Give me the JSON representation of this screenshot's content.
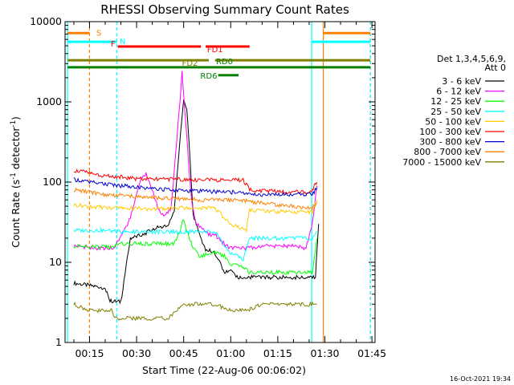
{
  "chart_data": {
    "type": "line",
    "title": "RHESSI Observing Summary Count Rates",
    "xlabel": "Start Time (22-Aug-06 00:06:02)",
    "ylabel_main": "Count Rate (s",
    "ylabel_sup": "-1",
    "ylabel_mid": " detector",
    "ylabel_sup2": "-1",
    "ylabel_end": ")",
    "x_range_min": [
      7.2,
      106
    ],
    "y_log": true,
    "ylim": [
      1,
      10000
    ],
    "y_ticks": [
      {
        "value": 1,
        "label": "1"
      },
      {
        "value": 10,
        "label": "10"
      },
      {
        "value": 100,
        "label": "100"
      },
      {
        "value": 1000,
        "label": "1000"
      },
      {
        "value": 10000,
        "label": "10000"
      }
    ],
    "x_ticks": [
      {
        "value": 15,
        "label": "00:15"
      },
      {
        "value": 30,
        "label": "00:30"
      },
      {
        "value": 45,
        "label": "00:45"
      },
      {
        "value": 60,
        "label": "01:00"
      },
      {
        "value": 75,
        "label": "01:15"
      },
      {
        "value": 90,
        "label": "01:30"
      },
      {
        "value": 105,
        "label": "01:45"
      }
    ],
    "legend_header": [
      "Det 1,3,4,5,6,9,",
      "Att 0"
    ],
    "legend_placement": "right",
    "timestamp": "16-Oct-2021 19:34",
    "series": [
      {
        "name": "3 - 6 keV",
        "color": "#000000",
        "x": [
          10,
          20,
          21.5,
          25,
          28,
          32,
          36,
          40,
          42,
          44,
          45,
          46,
          47,
          48,
          50,
          52,
          54,
          56,
          58,
          60,
          62,
          65,
          68,
          72,
          76,
          80,
          84,
          87,
          88
        ],
        "y": [
          5.5,
          4.8,
          3.3,
          3.2,
          20,
          22,
          27,
          28,
          45,
          400,
          1050,
          800,
          200,
          40,
          22,
          14,
          14,
          11,
          7.5,
          8,
          6.5,
          6.5,
          6.5,
          6.5,
          6.5,
          6.5,
          6.5,
          6.5,
          30
        ]
      },
      {
        "name": "6 - 12 keV",
        "color": "#ff00ff",
        "x": [
          10,
          14,
          17,
          20,
          23,
          25,
          28,
          30,
          31.5,
          33,
          35,
          37,
          39,
          41,
          43,
          44.5,
          46,
          47.5,
          49,
          51,
          53,
          55,
          57,
          60,
          62,
          65,
          70,
          75,
          80,
          84,
          86,
          87.5
        ],
        "y": [
          16,
          15.5,
          15,
          15,
          15,
          22,
          35,
          70,
          110,
          130,
          80,
          45,
          37,
          48,
          400,
          2300,
          350,
          60,
          30,
          27,
          22,
          22,
          18,
          15,
          15,
          15,
          16,
          16,
          16,
          15,
          30,
          90
        ]
      },
      {
        "name": "12 - 25 keV",
        "color": "#00ff00",
        "x": [
          10,
          14,
          18,
          22,
          25,
          30,
          35,
          38,
          40,
          42,
          44,
          45,
          46,
          48,
          50,
          55,
          58,
          60,
          62,
          64,
          66,
          70,
          75,
          80,
          84,
          86,
          87.5
        ],
        "y": [
          16,
          15.5,
          15.5,
          15.5,
          17,
          17,
          17,
          17,
          17,
          17,
          26,
          35,
          25,
          15,
          12,
          13,
          12,
          9.5,
          9,
          8.5,
          7.5,
          7.5,
          7.5,
          7.5,
          7.5,
          7.5,
          20
        ]
      },
      {
        "name": "25 - 50 keV",
        "color": "#00ffff",
        "x": [
          10,
          20,
          25,
          30,
          35,
          40,
          45,
          50,
          55,
          58,
          60,
          62,
          64,
          66,
          70,
          75,
          80,
          84,
          86,
          87.5
        ],
        "y": [
          25,
          25,
          24,
          24,
          24,
          24,
          24,
          24,
          24,
          16,
          13,
          12,
          11,
          20,
          20,
          20,
          20,
          20,
          20,
          24
        ]
      },
      {
        "name": "50 - 100 keV",
        "color": "#ffcc00",
        "x": [
          10,
          15,
          20,
          25,
          30,
          35,
          40,
          45,
          50,
          55,
          60,
          65,
          66,
          70,
          75,
          80,
          84,
          86,
          87.5
        ],
        "y": [
          52,
          50,
          48,
          47,
          47,
          46,
          47,
          48,
          48,
          47,
          30,
          25,
          45,
          44,
          43,
          43,
          42,
          42,
          60
        ]
      },
      {
        "name": "100 - 300 keV",
        "color": "#ff0000",
        "x": [
          10,
          15,
          20,
          25,
          30,
          35,
          40,
          45,
          50,
          55,
          57.5,
          59,
          61,
          62.5,
          64,
          66,
          70,
          75,
          80,
          84,
          86,
          87.5
        ],
        "y": [
          140,
          130,
          120,
          115,
          110,
          108,
          108,
          108,
          106,
          106,
          106,
          106,
          106,
          106,
          106,
          80,
          78,
          76,
          75,
          75,
          80,
          100
        ]
      },
      {
        "name": "300 - 800 keV",
        "color": "#0000cc",
        "x": [
          10,
          15,
          20,
          25,
          30,
          35,
          40,
          45,
          50,
          55,
          60,
          65,
          66,
          70,
          75,
          80,
          84,
          86,
          87.5
        ],
        "y": [
          108,
          100,
          95,
          90,
          87,
          84,
          80,
          78,
          77,
          76,
          75,
          72,
          70,
          70,
          70,
          70,
          70,
          70,
          85
        ]
      },
      {
        "name": "800 - 7000 keV",
        "color": "#ff8000",
        "x": [
          10,
          15,
          20,
          25,
          30,
          35,
          40,
          45,
          50,
          55,
          60,
          65,
          66,
          70,
          75,
          80,
          84,
          86,
          87.5
        ],
        "y": [
          80,
          75,
          70,
          68,
          66,
          64,
          62,
          62,
          60,
          60,
          60,
          58,
          57,
          55,
          52,
          50,
          48,
          48,
          55
        ]
      },
      {
        "name": "7000 - 15000 keV",
        "color": "#808000",
        "x": [
          10,
          15,
          20,
          22,
          23,
          30,
          35,
          40,
          45,
          50,
          55,
          60,
          65,
          70,
          75,
          80,
          84,
          86,
          87.5
        ],
        "y": [
          3,
          2.5,
          2.5,
          2.5,
          2,
          2,
          2,
          2,
          3,
          3,
          3,
          2.5,
          2.5,
          3,
          3,
          3,
          3,
          3,
          3
        ]
      }
    ],
    "annotations": [
      {
        "label": "S",
        "color": "#ff8000",
        "x_start": 8,
        "x_end": 15,
        "x_start2": 89.5,
        "x_end2": 104.5,
        "level": 7200
      },
      {
        "label": "N",
        "color": "#00ffff",
        "x_start": 8,
        "x_end": 23.7,
        "x_start2": 85.8,
        "x_end2": 104.5,
        "level": 5600
      },
      {
        "label": "F",
        "color": "#ff0000",
        "x_start": 24,
        "x_end": 50.5,
        "level": 4900
      },
      {
        "label": "FD1",
        "color": "#ff0000",
        "x_start": 52,
        "x_end": 66,
        "level": 4900
      },
      {
        "label": "FD2",
        "color": "#808000",
        "x_start": 8,
        "x_end": 53,
        "x_start2": 55,
        "x_end2": 104.5,
        "level": 3300
      },
      {
        "label": "RD0",
        "color": "#008000",
        "x_start": 8,
        "x_end": 104.5,
        "level": 2700
      },
      {
        "label": "RD6",
        "color": "#008000",
        "x_start": 56,
        "x_end": 62.5,
        "level": 2150
      }
    ],
    "vlines": [
      {
        "x": 8,
        "color": "#00ffff",
        "style": "solid"
      },
      {
        "x": 15,
        "color": "#ff8000",
        "style": "dashed"
      },
      {
        "x": 23.7,
        "color": "#00ffff",
        "style": "dashed"
      },
      {
        "x": 85.8,
        "color": "#00ffff",
        "style": "solid"
      },
      {
        "x": 89.5,
        "color": "#ff8000",
        "style": "solid"
      },
      {
        "x": 104.5,
        "color": "#ff8000",
        "style": "dashed"
      },
      {
        "x": 104.5,
        "color": "#00ffff",
        "style": "dashed"
      }
    ]
  }
}
